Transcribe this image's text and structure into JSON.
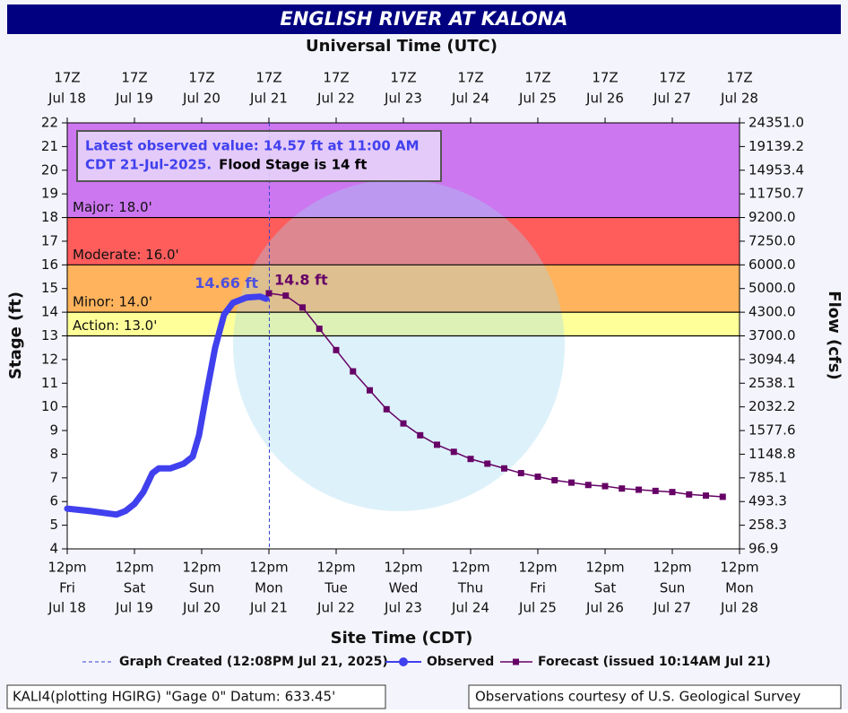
{
  "chart_data": {
    "type": "hydrograph",
    "title": "ENGLISH RIVER AT KALONA",
    "x2_axis_label": "Universal Time (UTC)",
    "x_axis_label": "Site Time (CDT)",
    "y_axis_label": "Stage (ft)",
    "y2_axis_label": "Flow (cfs)",
    "xlim": [
      18.5,
      28.5
    ],
    "xticks": [
      18.5,
      19.5,
      20.5,
      21.5,
      22.5,
      23.5,
      24.5,
      25.5,
      26.5,
      27.5,
      28.5
    ],
    "xtick_labels": {
      "time": [
        "12pm",
        "12pm",
        "12pm",
        "12pm",
        "12pm",
        "12pm",
        "12pm",
        "12pm",
        "12pm",
        "12pm",
        "12pm"
      ],
      "weekday": [
        "Fri",
        "Sat",
        "Sun",
        "Mon",
        "Tue",
        "Wed",
        "Thu",
        "Fri",
        "Sat",
        "Sun",
        "Mon"
      ],
      "date": [
        "Jul 18",
        "Jul 19",
        "Jul 20",
        "Jul 21",
        "Jul 22",
        "Jul 23",
        "Jul 24",
        "Jul 25",
        "Jul 26",
        "Jul 27",
        "Jul 28"
      ]
    },
    "x2tick_labels": {
      "time": [
        "17Z",
        "17Z",
        "17Z",
        "17Z",
        "17Z",
        "17Z",
        "17Z",
        "17Z",
        "17Z",
        "17Z",
        "17Z"
      ],
      "date": [
        "Jul 18",
        "Jul 19",
        "Jul 20",
        "Jul 21",
        "Jul 22",
        "Jul 23",
        "Jul 24",
        "Jul 25",
        "Jul 26",
        "Jul 27",
        "Jul 28"
      ]
    },
    "ylim": [
      4,
      22
    ],
    "yticks": [
      4,
      5,
      6,
      7,
      8,
      9,
      10,
      11,
      12,
      13,
      14,
      15,
      16,
      17,
      18,
      19,
      20,
      21,
      22
    ],
    "y2tick_labels": [
      "96.9",
      "258.3",
      "493.3",
      "785.1",
      "1148.8",
      "1577.6",
      "2032.2",
      "2538.1",
      "3094.4",
      "3700.0",
      "4300.0",
      "5000.0",
      "6000.0",
      "7250.0",
      "9200.0",
      "11750.7",
      "14953.4",
      "19139.2",
      "24351.0"
    ],
    "flood_categories": [
      {
        "label": "Action: 13.0'",
        "value": 13,
        "color": "#ffff99"
      },
      {
        "label": "Minor: 14.0'",
        "value": 14,
        "color": "#ffb35c"
      },
      {
        "label": "Moderate: 16.0'",
        "value": 16,
        "color": "#ff5c5c"
      },
      {
        "label": "Major: 18.0'",
        "value": 18,
        "color": "#cc77f0"
      }
    ],
    "series": [
      {
        "name": "Observed",
        "color": "#4040ee",
        "x": [
          18.5,
          18.833,
          19.233,
          19.367,
          19.5,
          19.633,
          19.767,
          19.86,
          20.033,
          20.233,
          20.367,
          20.46,
          20.567,
          20.7,
          20.833,
          20.967,
          21.167,
          21.367,
          21.458
        ],
        "values": [
          5.7,
          5.6,
          5.45,
          5.6,
          5.9,
          6.4,
          7.2,
          7.4,
          7.4,
          7.6,
          7.9,
          8.8,
          10.5,
          12.5,
          13.9,
          14.4,
          14.62,
          14.66,
          14.57
        ],
        "value_labels": [
          null,
          null,
          null,
          null,
          null,
          null,
          null,
          null,
          null,
          null,
          null,
          null,
          null,
          null,
          null,
          null,
          null,
          "14.66 ft",
          null
        ]
      },
      {
        "name": "Forecast (issued 10:14AM Jul 21)",
        "color": "#660066",
        "x": [
          21.5,
          21.75,
          22,
          22.25,
          22.5,
          22.75,
          23,
          23.25,
          23.5,
          23.75,
          24,
          24.25,
          24.5,
          24.75,
          25,
          25.25,
          25.5,
          25.75,
          26,
          26.25,
          26.5,
          26.75,
          27,
          27.25,
          27.5,
          27.75,
          28,
          28.25
        ],
        "values": [
          14.8,
          14.7,
          14.2,
          13.3,
          12.4,
          11.5,
          10.7,
          9.9,
          9.3,
          8.8,
          8.4,
          8.1,
          7.8,
          7.6,
          7.4,
          7.2,
          7.05,
          6.9,
          6.8,
          6.7,
          6.65,
          6.55,
          6.5,
          6.45,
          6.4,
          6.3,
          6.25,
          6.2
        ],
        "value_labels": [
          "14.8 ft",
          null,
          null,
          null,
          null,
          null,
          null,
          null,
          null,
          null,
          null,
          null,
          null,
          null,
          null,
          null,
          null,
          null,
          null,
          null,
          null,
          null,
          null,
          null,
          null,
          null,
          null,
          null
        ]
      }
    ],
    "graph_created": {
      "label": "Graph Created (12:08PM Jul 21, 2025)",
      "x": 21.506
    },
    "latest_observed": [
      "Latest observed value: 14.57 ft at 11:00 AM",
      "CDT 21-Jul-2025."
    ],
    "flood_stage_note": "Flood Stage is 14 ft",
    "footer_left": "KALI4(plotting HGIRG) \"Gage 0\" Datum: 633.45'",
    "footer_right": "Observations courtesy of U.S. Geological Survey"
  }
}
